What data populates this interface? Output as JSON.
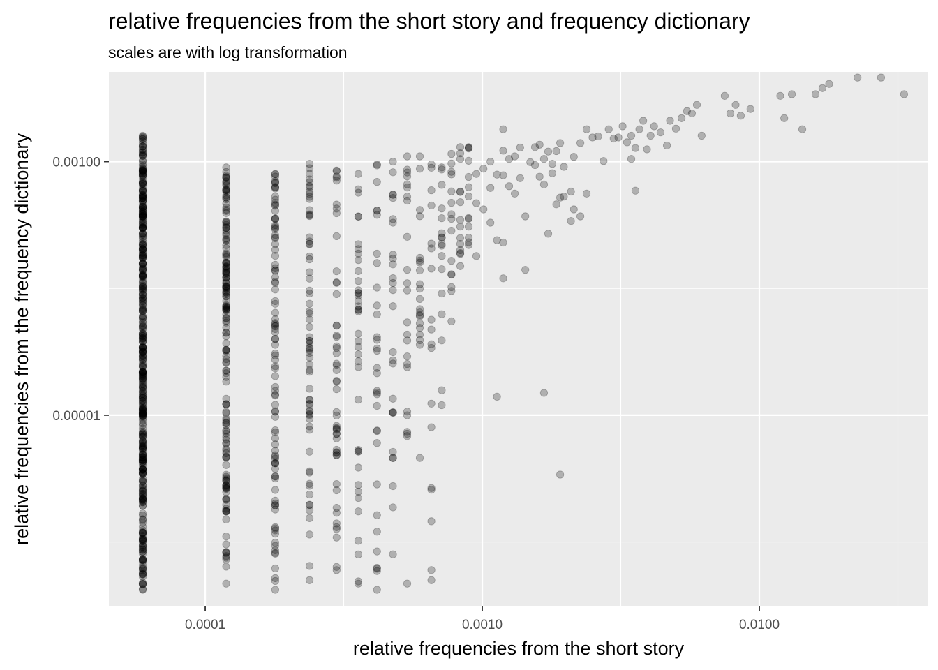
{
  "chart_data": {
    "type": "scatter",
    "title": "relative frequencies from the short story and frequency dictionary",
    "subtitle": "scales are with log transformation",
    "xlabel": "relative frequencies from the short story",
    "ylabel": "relative frequencies from the frequency dictionary",
    "x_scale": "log10",
    "y_scale": "log10",
    "xlim": [
      4.49e-05,
      0.0407
    ],
    "ylim": [
      3.1e-07,
      0.0051
    ],
    "x_ticks": [
      {
        "value": 0.0001,
        "label": "0.0001"
      },
      {
        "value": 0.001,
        "label": "0.0010"
      },
      {
        "value": 0.01,
        "label": "0.0100"
      }
    ],
    "y_ticks": [
      {
        "value": 1e-05,
        "label": "0.00001"
      },
      {
        "value": 0.001,
        "label": "0.00100"
      }
    ],
    "grid": true,
    "point_color": "#000000",
    "point_opacity": 0.25,
    "panel_background": "#ebebeb",
    "x_columns": [
      {
        "x": 5.95e-05,
        "y_min": 4.2e-07,
        "y_max": 0.0016
      },
      {
        "x": 0.000119,
        "y_min": 4.7e-07,
        "y_max": 0.0009
      },
      {
        "x": 0.000179,
        "y_min": 4.2e-07,
        "y_max": 0.0008
      },
      {
        "x": 0.000238,
        "y_min": 5e-07,
        "y_max": 0.00096
      },
      {
        "x": 0.000298,
        "y_min": 6e-07,
        "y_max": 0.00085
      },
      {
        "x": 0.000357,
        "y_min": 4.7e-07,
        "y_max": 0.0008
      },
      {
        "x": 0.000417,
        "y_min": 4.2e-07,
        "y_max": 0.00095
      },
      {
        "x": 0.000476,
        "y_min": 8e-07,
        "y_max": 0.001
      },
      {
        "x": 0.000536,
        "y_min": 4.7e-07,
        "y_max": 0.0011
      },
      {
        "x": 0.000595,
        "y_min": 4.6e-06,
        "y_max": 0.0011
      },
      {
        "x": 0.000655,
        "y_min": 5e-07,
        "y_max": 0.00095
      },
      {
        "x": 0.000714,
        "y_min": 1.2e-05,
        "y_max": 0.0009
      },
      {
        "x": 0.000774,
        "y_min": 5.5e-05,
        "y_max": 0.00115
      },
      {
        "x": 0.000833,
        "y_min": 0.00015,
        "y_max": 0.0013
      },
      {
        "x": 0.000893,
        "y_min": 0.00022,
        "y_max": 0.0013
      }
    ],
    "points": [
      {
        "x": 0.000952,
        "y": 0.00018
      },
      {
        "x": 0.000952,
        "y": 0.00047
      },
      {
        "x": 0.000952,
        "y": 0.0008
      },
      {
        "x": 0.00101,
        "y": 0.00042
      },
      {
        "x": 0.00101,
        "y": 0.00088
      },
      {
        "x": 0.00107,
        "y": 0.00033
      },
      {
        "x": 0.00107,
        "y": 0.00062
      },
      {
        "x": 0.00107,
        "y": 0.001
      },
      {
        "x": 0.00113,
        "y": 1.4e-05
      },
      {
        "x": 0.00113,
        "y": 0.00024
      },
      {
        "x": 0.00113,
        "y": 0.00079
      },
      {
        "x": 0.00119,
        "y": 0.00012
      },
      {
        "x": 0.00119,
        "y": 0.00023
      },
      {
        "x": 0.00119,
        "y": 0.00078
      },
      {
        "x": 0.00119,
        "y": 0.00122
      },
      {
        "x": 0.00119,
        "y": 0.0018
      },
      {
        "x": 0.00125,
        "y": 0.00064
      },
      {
        "x": 0.00125,
        "y": 0.00105
      },
      {
        "x": 0.00131,
        "y": 0.00056
      },
      {
        "x": 0.00131,
        "y": 0.0011
      },
      {
        "x": 0.00137,
        "y": 0.00074
      },
      {
        "x": 0.00137,
        "y": 0.00129
      },
      {
        "x": 0.00143,
        "y": 0.00014
      },
      {
        "x": 0.00143,
        "y": 0.00037
      },
      {
        "x": 0.00149,
        "y": 0.00099
      },
      {
        "x": 0.00155,
        "y": 0.0013
      },
      {
        "x": 0.00155,
        "y": 0.00094
      },
      {
        "x": 0.00161,
        "y": 0.00076
      },
      {
        "x": 0.00161,
        "y": 0.00136
      },
      {
        "x": 0.00167,
        "y": 1.5e-05
      },
      {
        "x": 0.00167,
        "y": 0.00066
      },
      {
        "x": 0.00167,
        "y": 0.00105
      },
      {
        "x": 0.00173,
        "y": 0.0012
      },
      {
        "x": 0.00173,
        "y": 0.00027
      },
      {
        "x": 0.00179,
        "y": 0.00081
      },
      {
        "x": 0.00179,
        "y": 0.00096
      },
      {
        "x": 0.00185,
        "y": 0.00121
      },
      {
        "x": 0.00185,
        "y": 0.00046
      },
      {
        "x": 0.00191,
        "y": 3.4e-06
      },
      {
        "x": 0.00191,
        "y": 0.0014
      },
      {
        "x": 0.00191,
        "y": 0.00052
      },
      {
        "x": 0.00197,
        "y": 0.00053
      },
      {
        "x": 0.00197,
        "y": 0.00091
      },
      {
        "x": 0.00209,
        "y": 0.00058
      },
      {
        "x": 0.00209,
        "y": 0.00034
      },
      {
        "x": 0.00214,
        "y": 0.00042
      },
      {
        "x": 0.00214,
        "y": 0.00109
      },
      {
        "x": 0.00226,
        "y": 0.00037
      },
      {
        "x": 0.00226,
        "y": 0.0014
      },
      {
        "x": 0.00238,
        "y": 0.0018
      },
      {
        "x": 0.00238,
        "y": 0.00056
      },
      {
        "x": 0.0025,
        "y": 0.00155
      },
      {
        "x": 0.00262,
        "y": 0.00158
      },
      {
        "x": 0.00274,
        "y": 0.00101
      },
      {
        "x": 0.00286,
        "y": 0.0018
      },
      {
        "x": 0.00298,
        "y": 0.00152
      },
      {
        "x": 0.0031,
        "y": 0.00155
      },
      {
        "x": 0.00321,
        "y": 0.0019
      },
      {
        "x": 0.00333,
        "y": 0.00142
      },
      {
        "x": 0.00345,
        "y": 0.0016
      },
      {
        "x": 0.00345,
        "y": 0.00105
      },
      {
        "x": 0.00357,
        "y": 0.00128
      },
      {
        "x": 0.00357,
        "y": 0.00059
      },
      {
        "x": 0.00369,
        "y": 0.0018
      },
      {
        "x": 0.00381,
        "y": 0.0021
      },
      {
        "x": 0.00393,
        "y": 0.00125
      },
      {
        "x": 0.00405,
        "y": 0.0016
      },
      {
        "x": 0.00417,
        "y": 0.0019
      },
      {
        "x": 0.0044,
        "y": 0.0017
      },
      {
        "x": 0.00464,
        "y": 0.00134
      },
      {
        "x": 0.00476,
        "y": 0.0021
      },
      {
        "x": 0.005,
        "y": 0.00182
      },
      {
        "x": 0.00524,
        "y": 0.0022
      },
      {
        "x": 0.00548,
        "y": 0.0025
      },
      {
        "x": 0.00571,
        "y": 0.0024
      },
      {
        "x": 0.00595,
        "y": 0.0028
      },
      {
        "x": 0.00619,
        "y": 0.0016
      },
      {
        "x": 0.0075,
        "y": 0.0033
      },
      {
        "x": 0.00786,
        "y": 0.0024
      },
      {
        "x": 0.00821,
        "y": 0.0028
      },
      {
        "x": 0.00857,
        "y": 0.0023
      },
      {
        "x": 0.00929,
        "y": 0.0026
      },
      {
        "x": 0.0119,
        "y": 0.0033
      },
      {
        "x": 0.0123,
        "y": 0.0022
      },
      {
        "x": 0.0131,
        "y": 0.0034
      },
      {
        "x": 0.01429,
        "y": 0.0018
      },
      {
        "x": 0.01595,
        "y": 0.0034
      },
      {
        "x": 0.0169,
        "y": 0.0038
      },
      {
        "x": 0.01786,
        "y": 0.0041
      },
      {
        "x": 0.02262,
        "y": 0.0046
      },
      {
        "x": 0.0275,
        "y": 0.0046
      },
      {
        "x": 0.0333,
        "y": 0.0034
      }
    ]
  }
}
